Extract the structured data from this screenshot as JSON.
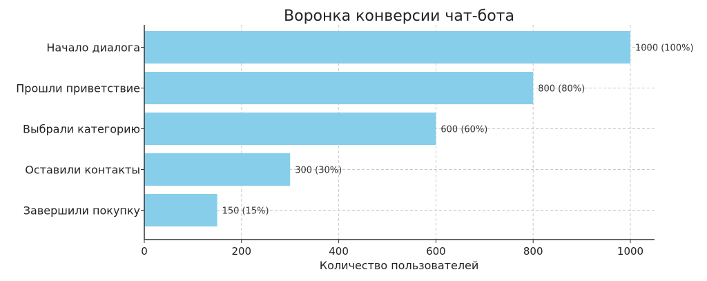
{
  "chart_data": {
    "type": "bar",
    "orientation": "horizontal",
    "title": "Воронка конверсии чат-бота",
    "xlabel": "Количество пользователей",
    "ylabel": "",
    "xlim": [
      0,
      1050
    ],
    "xticks": [
      0,
      200,
      400,
      600,
      800,
      1000
    ],
    "grid": true,
    "bar_color": "#87CEEB",
    "categories": [
      "Начало диалога",
      "Прошли приветствие",
      "Выбрали категорию",
      "Оставили контакты",
      "Завершили покупку"
    ],
    "values": [
      1000,
      800,
      600,
      300,
      150
    ],
    "data_labels": [
      "1000 (100%)",
      "800 (80%)",
      "600 (60%)",
      "300 (30%)",
      "150 (15%)"
    ]
  }
}
